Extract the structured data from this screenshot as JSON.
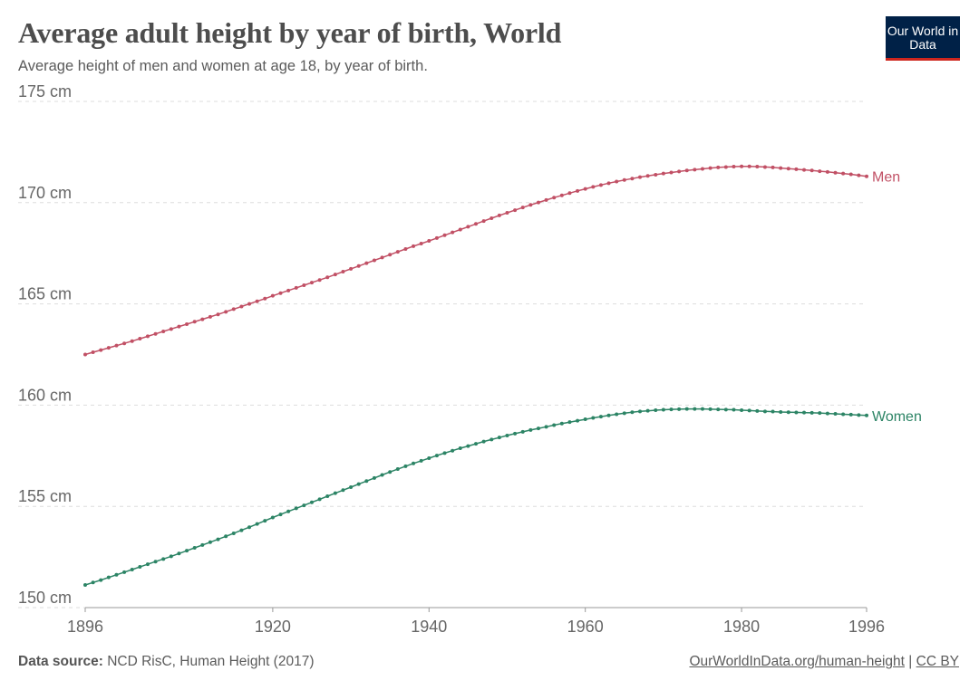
{
  "header": {
    "title": "Average adult height by year of birth, World",
    "subtitle": "Average height of men and women at age 18, by year of birth.",
    "logo_text": "Our World in Data"
  },
  "footer": {
    "source_label": "Data source:",
    "source_text": "NCD RisC, Human Height (2017)",
    "link_text": "OurWorldInData.org/human-height",
    "separator": "|",
    "license": "CC BY"
  },
  "chart_data": {
    "type": "line",
    "title": "Average adult height by year of birth, World",
    "subtitle": "Average height of men and women at age 18, by year of birth.",
    "xlabel": "",
    "ylabel": "",
    "xlim": [
      1896,
      1996
    ],
    "ylim": [
      150,
      175
    ],
    "x_ticks": [
      {
        "value": 1896,
        "label": "1896"
      },
      {
        "value": 1920,
        "label": "1920"
      },
      {
        "value": 1940,
        "label": "1940"
      },
      {
        "value": 1960,
        "label": "1960"
      },
      {
        "value": 1980,
        "label": "1980"
      },
      {
        "value": 1996,
        "label": "1996"
      }
    ],
    "y_ticks": [
      {
        "value": 150,
        "label": "150 cm"
      },
      {
        "value": 155,
        "label": "155 cm"
      },
      {
        "value": 160,
        "label": "160 cm"
      },
      {
        "value": 165,
        "label": "165 cm"
      },
      {
        "value": 170,
        "label": "170 cm"
      },
      {
        "value": 175,
        "label": "175 cm"
      }
    ],
    "grid": "horizontal dashed",
    "legend": "inline labels at line ends (right)",
    "x": [
      1896,
      1897,
      1898,
      1899,
      1900,
      1901,
      1902,
      1903,
      1904,
      1905,
      1906,
      1907,
      1908,
      1909,
      1910,
      1911,
      1912,
      1913,
      1914,
      1915,
      1916,
      1917,
      1918,
      1919,
      1920,
      1921,
      1922,
      1923,
      1924,
      1925,
      1926,
      1927,
      1928,
      1929,
      1930,
      1931,
      1932,
      1933,
      1934,
      1935,
      1936,
      1937,
      1938,
      1939,
      1940,
      1941,
      1942,
      1943,
      1944,
      1945,
      1946,
      1947,
      1948,
      1949,
      1950,
      1951,
      1952,
      1953,
      1954,
      1955,
      1956,
      1957,
      1958,
      1959,
      1960,
      1961,
      1962,
      1963,
      1964,
      1965,
      1966,
      1967,
      1968,
      1969,
      1970,
      1971,
      1972,
      1973,
      1974,
      1975,
      1976,
      1977,
      1978,
      1979,
      1980,
      1981,
      1982,
      1983,
      1984,
      1985,
      1986,
      1987,
      1988,
      1989,
      1990,
      1991,
      1992,
      1993,
      1994,
      1995,
      1996
    ],
    "series": [
      {
        "name": "Men",
        "color": "#c15065",
        "values": [
          162.5,
          162.61,
          162.72,
          162.83,
          162.94,
          163.05,
          163.16,
          163.28,
          163.4,
          163.52,
          163.64,
          163.76,
          163.88,
          164.0,
          164.12,
          164.24,
          164.36,
          164.48,
          164.61,
          164.74,
          164.87,
          165.0,
          165.13,
          165.26,
          165.4,
          165.53,
          165.66,
          165.79,
          165.92,
          166.05,
          166.18,
          166.31,
          166.45,
          166.59,
          166.73,
          166.87,
          167.01,
          167.15,
          167.29,
          167.43,
          167.57,
          167.71,
          167.85,
          167.98,
          168.11,
          168.25,
          168.39,
          168.53,
          168.67,
          168.81,
          168.95,
          169.09,
          169.23,
          169.37,
          169.5,
          169.63,
          169.76,
          169.89,
          170.01,
          170.13,
          170.25,
          170.36,
          170.47,
          170.58,
          170.68,
          170.78,
          170.87,
          170.96,
          171.04,
          171.12,
          171.19,
          171.26,
          171.32,
          171.38,
          171.44,
          171.49,
          171.54,
          171.59,
          171.63,
          171.67,
          171.71,
          171.74,
          171.76,
          171.78,
          171.79,
          171.79,
          171.78,
          171.76,
          171.74,
          171.71,
          171.68,
          171.65,
          171.62,
          171.59,
          171.55,
          171.52,
          171.48,
          171.44,
          171.4,
          171.35,
          171.3
        ]
      },
      {
        "name": "Women",
        "color": "#2c8465",
        "values": [
          151.12,
          151.24,
          151.36,
          151.49,
          151.62,
          151.75,
          151.88,
          152.01,
          152.14,
          152.27,
          152.4,
          152.53,
          152.67,
          152.81,
          152.95,
          153.09,
          153.23,
          153.37,
          153.52,
          153.67,
          153.82,
          153.97,
          154.13,
          154.29,
          154.45,
          154.6,
          154.75,
          154.9,
          155.05,
          155.2,
          155.35,
          155.5,
          155.65,
          155.8,
          155.95,
          156.1,
          156.25,
          156.4,
          156.55,
          156.7,
          156.84,
          156.98,
          157.12,
          157.25,
          157.38,
          157.51,
          157.63,
          157.75,
          157.87,
          157.98,
          158.09,
          158.2,
          158.3,
          158.4,
          158.5,
          158.59,
          158.68,
          158.77,
          158.85,
          158.93,
          159.01,
          159.09,
          159.16,
          159.23,
          159.3,
          159.37,
          159.43,
          159.49,
          159.55,
          159.6,
          159.65,
          159.69,
          159.72,
          159.75,
          159.77,
          159.79,
          159.8,
          159.81,
          159.81,
          159.81,
          159.8,
          159.79,
          159.78,
          159.77,
          159.75,
          159.73,
          159.71,
          159.69,
          159.68,
          159.66,
          159.65,
          159.64,
          159.63,
          159.62,
          159.61,
          159.59,
          159.57,
          159.55,
          159.53,
          159.51,
          159.49
        ]
      }
    ]
  }
}
